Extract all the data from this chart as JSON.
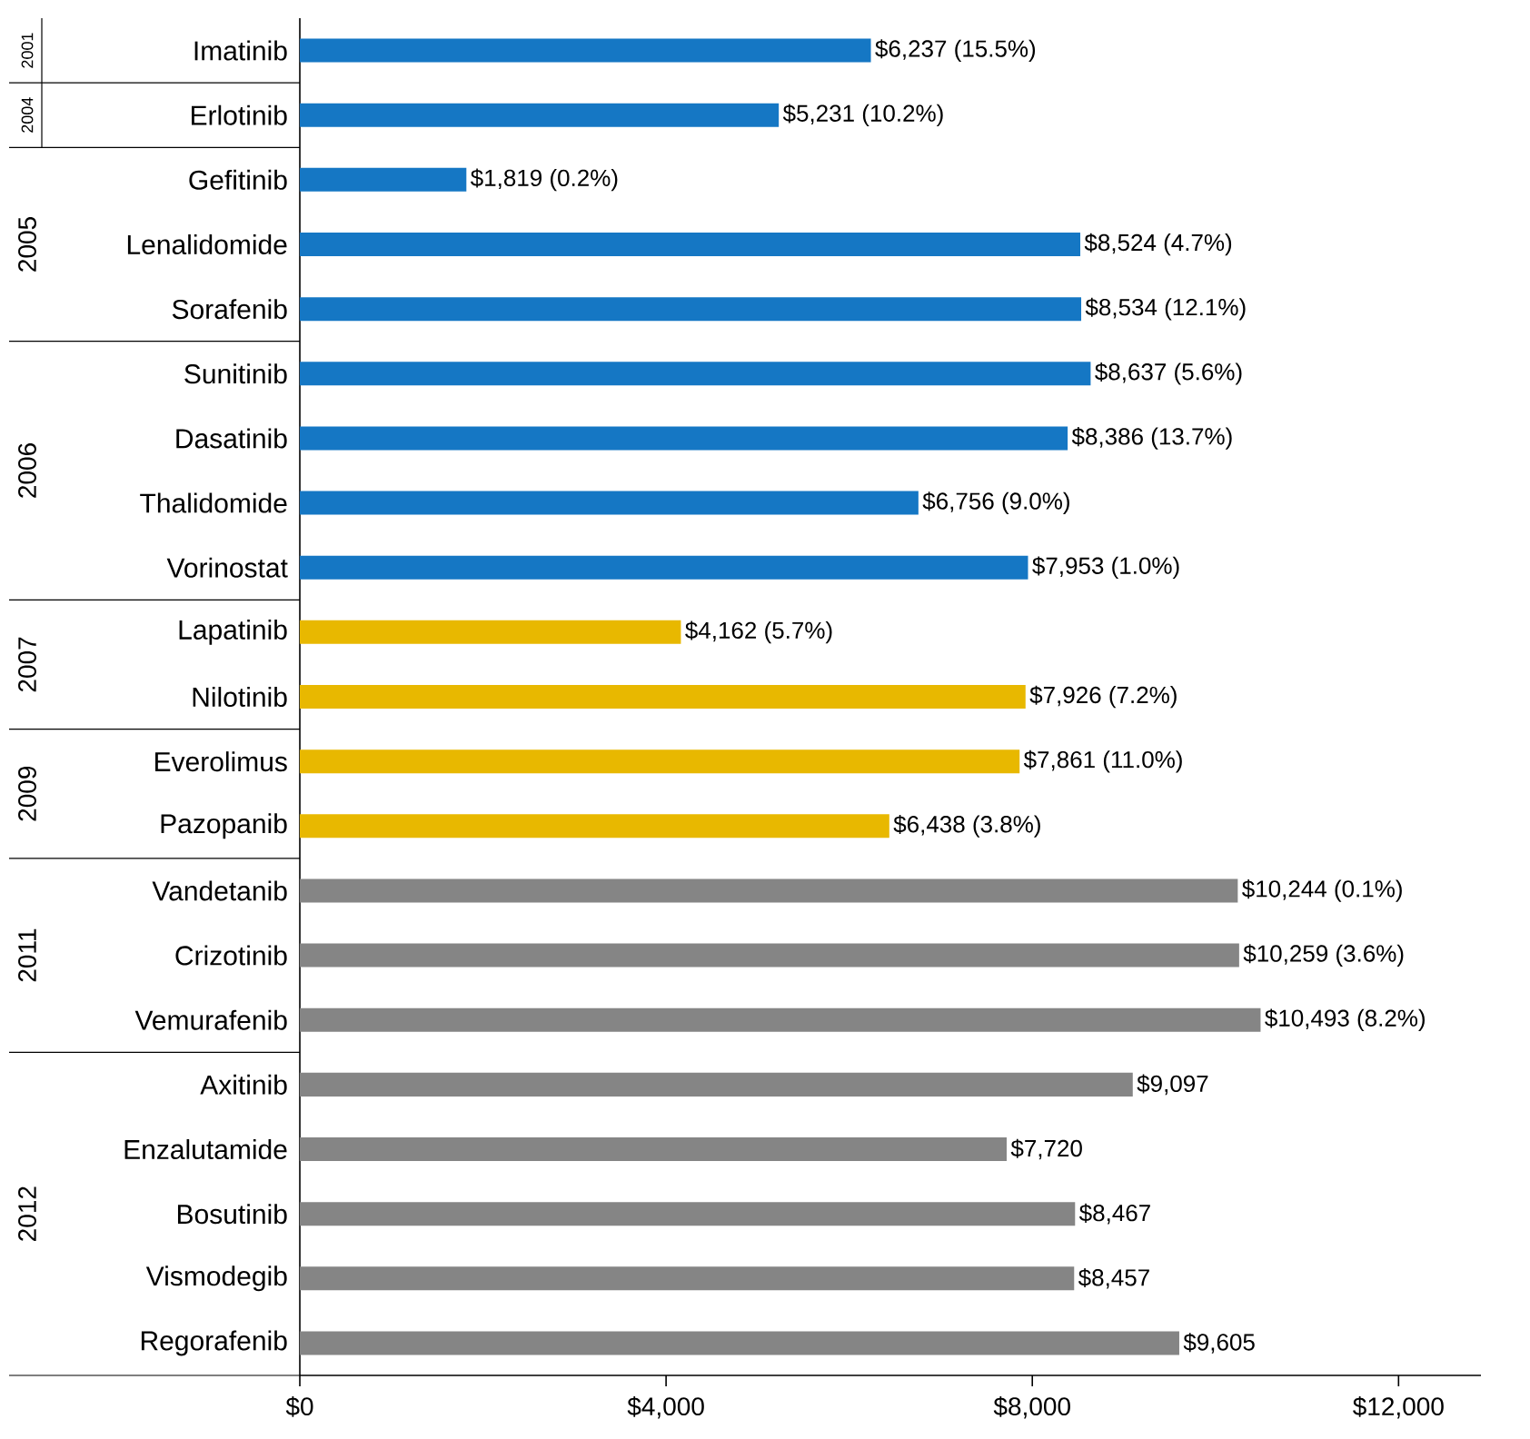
{
  "chart_data": {
    "type": "bar",
    "orientation": "horizontal",
    "categories": [
      "Imatinib",
      "Erlotinib",
      "Gefitinib",
      "Lenalidomide",
      "Sorafenib",
      "Sunitinib",
      "Dasatinib",
      "Thalidomide",
      "Vorinostat",
      "Lapatinib",
      "Nilotinib",
      "Everolimus",
      "Pazopanib",
      "Vandetanib",
      "Crizotinib",
      "Vemurafenib",
      "Axitinib",
      "Enzalutamide",
      "Bosutinib",
      "Vismodegib",
      "Regorafenib"
    ],
    "values": [
      6237,
      5231,
      1819,
      8524,
      8534,
      8637,
      8386,
      6756,
      7953,
      4162,
      7926,
      7861,
      6438,
      10244,
      10259,
      10493,
      9097,
      7720,
      8467,
      8457,
      9605
    ],
    "value_labels": [
      "$6,237 (15.5%)",
      "$5,231 (10.2%)",
      "$1,819 (0.2%)",
      "$8,524 (4.7%)",
      "$8,534 (12.1%)",
      "$8,637 (5.6%)",
      "$8,386 (13.7%)",
      "$6,756 (9.0%)",
      "$7,953 (1.0%)",
      "$4,162 (5.7%)",
      "$7,926 (7.2%)",
      "$7,861 (11.0%)",
      "$6,438 (3.8%)",
      "$10,244 (0.1%)",
      "$10,259 (3.6%)",
      "$10,493 (8.2%)",
      "$9,097",
      "$7,720",
      "$8,467",
      "$8,457",
      "$9,605"
    ],
    "colors": [
      "#1577c4",
      "#1577c4",
      "#1577c4",
      "#1577c4",
      "#1577c4",
      "#1577c4",
      "#1577c4",
      "#1577c4",
      "#1577c4",
      "#e8b800",
      "#e8b800",
      "#e8b800",
      "#e8b800",
      "#858585",
      "#858585",
      "#858585",
      "#858585",
      "#858585",
      "#858585",
      "#858585",
      "#858585"
    ],
    "xlim": [
      0,
      12900
    ],
    "xticks": [
      {
        "value": 0,
        "label": "$0"
      },
      {
        "value": 4000,
        "label": "$4,000"
      },
      {
        "value": 8000,
        "label": "$8,000"
      },
      {
        "value": 12000,
        "label": "$12,000"
      }
    ],
    "grid": false,
    "annotations": [
      "2001",
      "2004",
      "2005",
      "2006",
      "2007",
      "2009",
      "2011",
      "2012"
    ]
  }
}
